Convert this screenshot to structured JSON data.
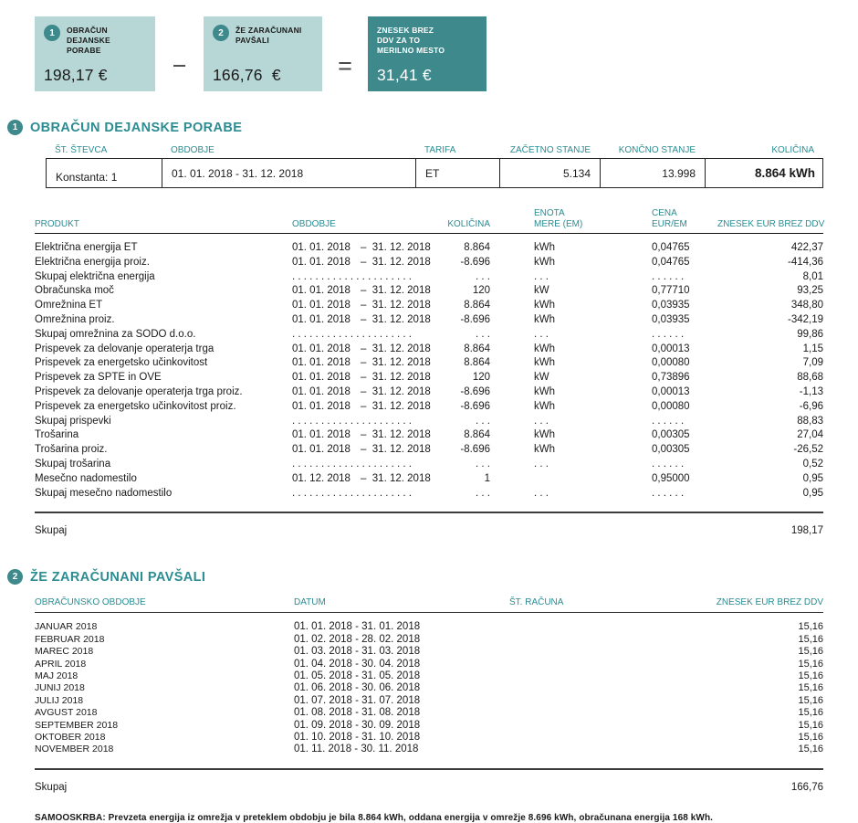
{
  "summary": {
    "box1": {
      "number": "1",
      "label": "OBRAČUN\nDEJANSKE\nPORABE",
      "amount": "198,17 €"
    },
    "minus": "−",
    "box2": {
      "number": "2",
      "label": "ŽE ZARAČUNANI\nPAVŠALI",
      "amount": "166,76  €"
    },
    "equals": "=",
    "box3": {
      "label": "ZNESEK BREZ\nDDV ZA TO\nMERILNO MESTO",
      "amount": "31,41 €"
    }
  },
  "colors": {
    "teal_dark": "#3e898c",
    "teal_light": "#b7d7d6",
    "teal_text": "#2b8c92"
  },
  "section1": {
    "number": "1",
    "title": "OBRAČUN DEJANSKE PORABE",
    "meter_table": {
      "headers": {
        "st_stevca": "ŠT. ŠTEVCA",
        "obdobje": "OBDOBJE",
        "tarifa": "TARIFA",
        "zacetno": "ZAČETNO STANJE",
        "koncno": "KONČNO STANJE",
        "kolicina": "KOLIČINA"
      },
      "row": {
        "st_stevca": "Konstanta: 1",
        "obdobje": "01. 01. 2018 - 31. 12. 2018",
        "tarifa": "ET",
        "zacetno": "5.134",
        "koncno": "13.998",
        "kolicina": "8.864 kWh"
      }
    },
    "products_table": {
      "headers": {
        "produkt": "PRODUKT",
        "obdobje": "OBDOBJE",
        "kolicina": "KOLIČINA",
        "enota": "ENOTA\nMERE (EM)",
        "cena": "CENA\nEUR/EM",
        "znesek": "ZNESEK EUR BREZ DDV"
      },
      "rows": [
        {
          "produkt": "Električna energija ET",
          "from": "01. 01. 2018",
          "to": "–  31. 12. 2018",
          "kolicina": "8.864",
          "enota": "kWh",
          "cena": "0,04765",
          "znesek": "422,37"
        },
        {
          "produkt": "Električna energija proiz.",
          "from": "01. 01. 2018",
          "to": "–  31. 12. 2018",
          "kolicina": "-8.696",
          "enota": "kWh",
          "cena": "0,04765",
          "znesek": "-414,36"
        },
        {
          "produkt": "Skupaj električna energija",
          "from": ". . . . . . . . . . . . . . . . . . . . .",
          "to": "",
          "kolicina": ". . .",
          "enota": ". . .",
          "cena": ". . . . . .",
          "znesek": "8,01"
        },
        {
          "produkt": "Obračunska moč",
          "from": "01. 01. 2018",
          "to": "–  31. 12. 2018",
          "kolicina": "120",
          "enota": "kW",
          "cena": "0,77710",
          "znesek": "93,25"
        },
        {
          "produkt": "Omrežnina ET",
          "from": "01. 01. 2018",
          "to": "–  31. 12. 2018",
          "kolicina": "8.864",
          "enota": "kWh",
          "cena": "0,03935",
          "znesek": "348,80"
        },
        {
          "produkt": "Omrežnina proiz.",
          "from": "01. 01. 2018",
          "to": "–  31. 12. 2018",
          "kolicina": "-8.696",
          "enota": "kWh",
          "cena": "0,03935",
          "znesek": "-342,19"
        },
        {
          "produkt": "Skupaj omrežnina za SODO d.o.o.",
          "from": ". . . . . . . . . . . . . . . . . . . . .",
          "to": "",
          "kolicina": ". . .",
          "enota": ". . .",
          "cena": ". . . . . .",
          "znesek": "99,86"
        },
        {
          "produkt": "Prispevek za delovanje operaterja trga",
          "from": "01. 01. 2018",
          "to": "–  31. 12. 2018",
          "kolicina": "8.864",
          "enota": "kWh",
          "cena": "0,00013",
          "znesek": "1,15"
        },
        {
          "produkt": "Prispevek za energetsko učinkovitost",
          "from": "01. 01. 2018",
          "to": "–  31. 12. 2018",
          "kolicina": "8.864",
          "enota": "kWh",
          "cena": "0,00080",
          "znesek": "7,09"
        },
        {
          "produkt": "Prispevek za SPTE in OVE",
          "from": "01. 01. 2018",
          "to": "–  31. 12. 2018",
          "kolicina": "120",
          "enota": "kW",
          "cena": "0,73896",
          "znesek": "88,68"
        },
        {
          "produkt": "Prispevek za delovanje operaterja trga proiz.",
          "from": "01. 01. 2018",
          "to": "–  31. 12. 2018",
          "kolicina": "-8.696",
          "enota": "kWh",
          "cena": "0,00013",
          "znesek": "-1,13"
        },
        {
          "produkt": "Prispevek za energetsko učinkovitost proiz.",
          "from": "01. 01. 2018",
          "to": "–  31. 12. 2018",
          "kolicina": "-8.696",
          "enota": "kWh",
          "cena": "0,00080",
          "znesek": "-6,96"
        },
        {
          "produkt": "Skupaj prispevki",
          "from": ". . . . . . . . . . . . . . . . . . . . .",
          "to": "",
          "kolicina": ". . .",
          "enota": ". . .",
          "cena": ". . . . . .",
          "znesek": "88,83"
        },
        {
          "produkt": "Trošarina",
          "from": "01. 01. 2018",
          "to": "–  31. 12. 2018",
          "kolicina": "8.864",
          "enota": "kWh",
          "cena": "0,00305",
          "znesek": "27,04"
        },
        {
          "produkt": "Trošarina proiz.",
          "from": "01. 01. 2018",
          "to": "–  31. 12. 2018",
          "kolicina": "-8.696",
          "enota": "kWh",
          "cena": "0,00305",
          "znesek": "-26,52"
        },
        {
          "produkt": "Skupaj trošarina",
          "from": ". . . . . . . . . . . . . . . . . . . . .",
          "to": "",
          "kolicina": ". . .",
          "enota": ". . .",
          "cena": ". . . . . .",
          "znesek": "0,52"
        },
        {
          "produkt": "Mesečno nadomestilo",
          "from": "01. 12. 2018",
          "to": "–  31. 12. 2018",
          "kolicina": "1",
          "enota": "",
          "cena": "0,95000",
          "znesek": "0,95"
        },
        {
          "produkt": "Skupaj mesečno nadomestilo",
          "from": ". . . . . . . . . . . . . . . . . . . . .",
          "to": "",
          "kolicina": ". . .",
          "enota": ". . .",
          "cena": ". . . . . .",
          "znesek": "0,95"
        }
      ],
      "total_label": "Skupaj",
      "total_value": "198,17"
    }
  },
  "section2": {
    "number": "2",
    "title": "ŽE ZARAČUNANI PAVŠALI",
    "headers": {
      "obdobje": "OBRAČUNSKO OBDOBJE",
      "datum": "DATUM",
      "racun": "ŠT. RAČUNA",
      "znesek": "ZNESEK EUR BREZ DDV"
    },
    "rows": [
      {
        "mesec": "JANUAR 2018",
        "datum": "01. 01. 2018 - 31. 01. 2018",
        "racun": "",
        "znesek": "15,16"
      },
      {
        "mesec": "FEBRUAR 2018",
        "datum": "01. 02. 2018 - 28. 02. 2018",
        "racun": "",
        "znesek": "15,16"
      },
      {
        "mesec": "MAREC 2018",
        "datum": "01. 03. 2018 - 31. 03. 2018",
        "racun": "",
        "znesek": "15,16"
      },
      {
        "mesec": "APRIL 2018",
        "datum": "01. 04. 2018 - 30. 04. 2018",
        "racun": "",
        "znesek": "15,16"
      },
      {
        "mesec": "MAJ 2018",
        "datum": "01. 05. 2018 - 31. 05. 2018",
        "racun": "",
        "znesek": "15,16"
      },
      {
        "mesec": "JUNIJ 2018",
        "datum": "01. 06. 2018 - 30. 06. 2018",
        "racun": "",
        "znesek": "15,16"
      },
      {
        "mesec": "JULIJ 2018",
        "datum": "01. 07. 2018 - 31. 07. 2018",
        "racun": "",
        "znesek": "15,16"
      },
      {
        "mesec": "AVGUST 2018",
        "datum": "01. 08. 2018 - 31. 08. 2018",
        "racun": "",
        "znesek": "15,16"
      },
      {
        "mesec": "SEPTEMBER 2018",
        "datum": "01. 09. 2018 - 30. 09. 2018",
        "racun": "",
        "znesek": "15,16"
      },
      {
        "mesec": "OKTOBER 2018",
        "datum": "01. 10. 2018 - 31. 10. 2018",
        "racun": "",
        "znesek": "15,16"
      },
      {
        "mesec": "NOVEMBER 2018",
        "datum": "01. 11. 2018 - 30. 11. 2018",
        "racun": "",
        "znesek": "15,16"
      }
    ],
    "total_label": "Skupaj",
    "total_value": "166,76"
  },
  "footnote": "SAMOOSKRBA: Prevzeta energija iz omrežja v preteklem obdobju je bila 8.864 kWh, oddana energija v omrežje 8.696 kWh, obračunana energija 168 kWh."
}
